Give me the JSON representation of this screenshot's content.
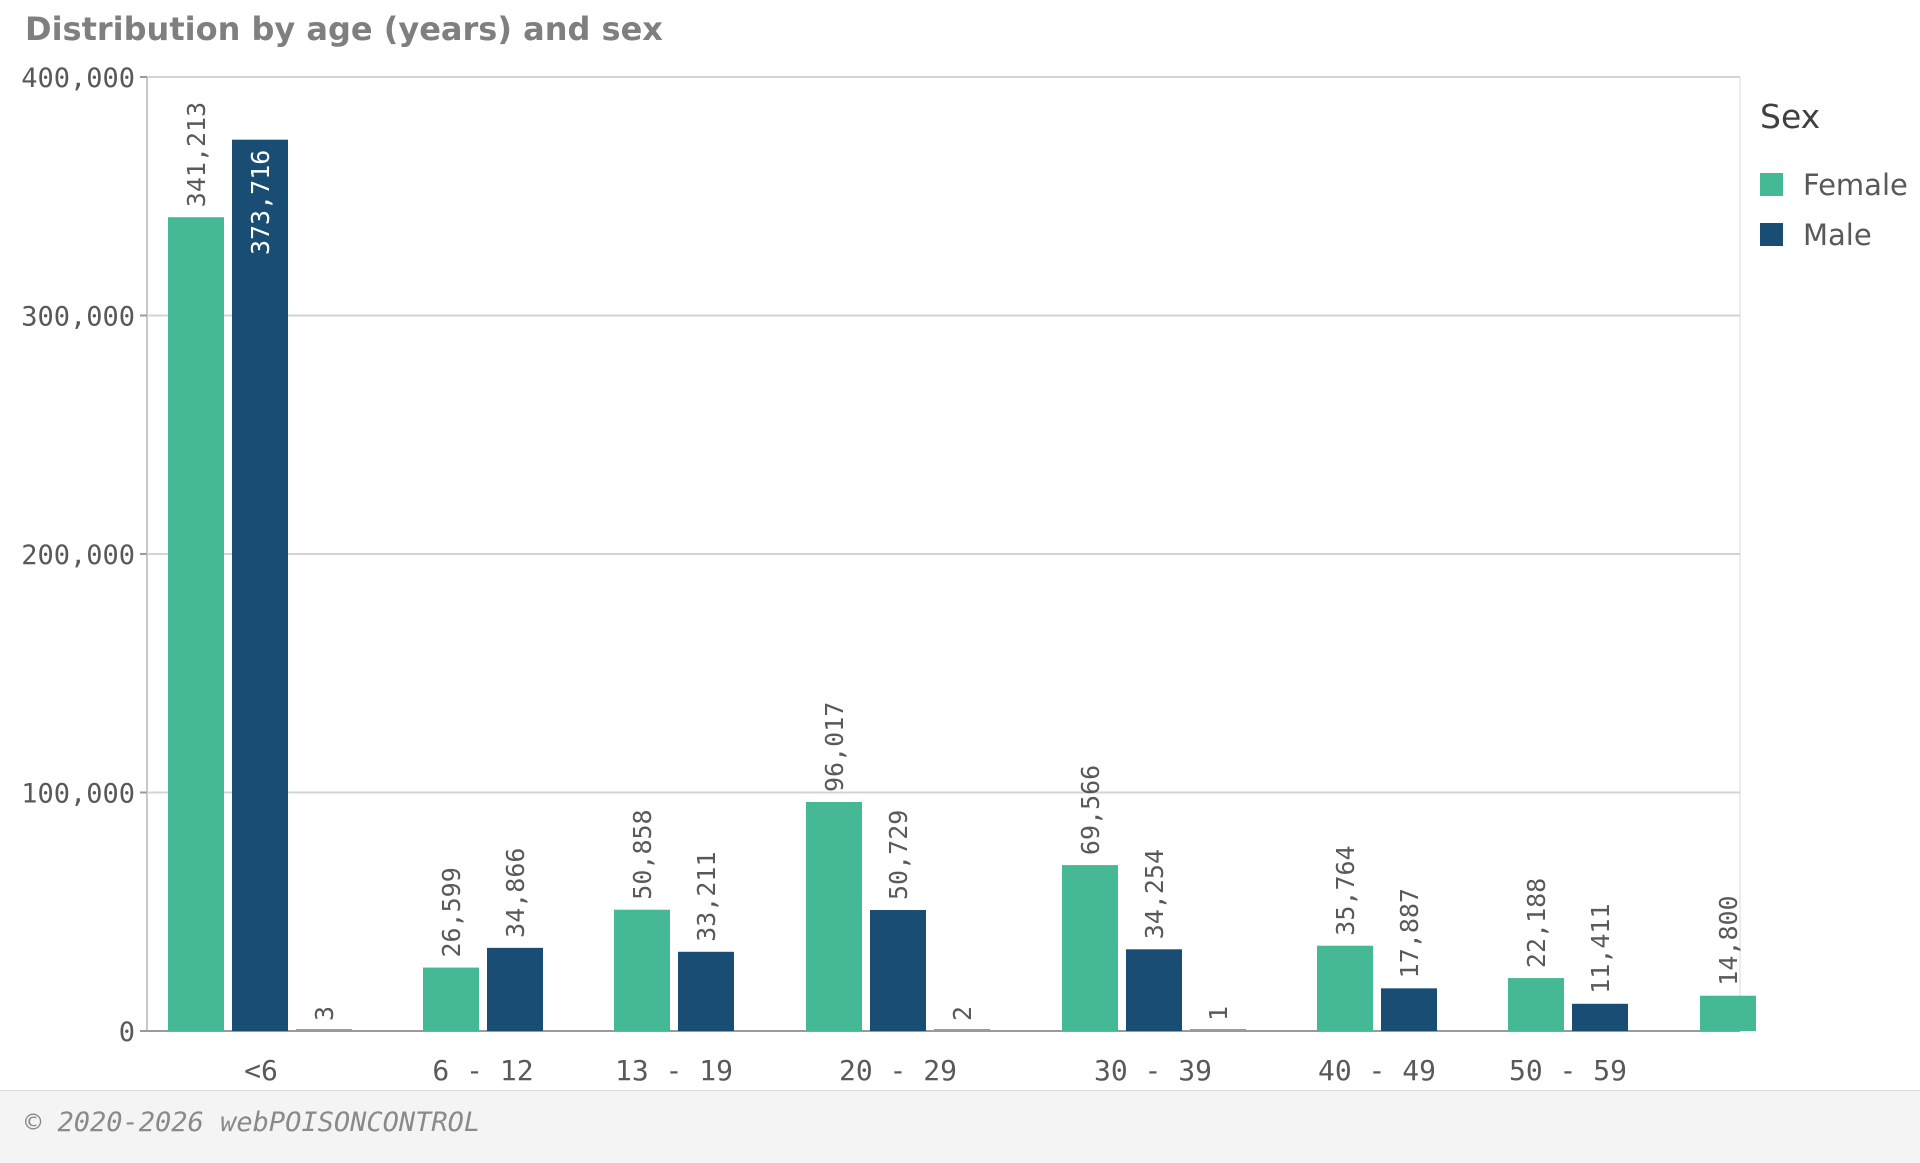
{
  "chart_data": {
    "type": "bar",
    "title": "Distribution by age (years) and sex",
    "xlabel": "",
    "ylabel": "",
    "ylim": [
      0,
      400000
    ],
    "yticks": [
      0,
      100000,
      200000,
      300000,
      400000
    ],
    "ytick_labels": [
      "0",
      "100,000",
      "200,000",
      "300,000",
      "400,000"
    ],
    "grid": true,
    "legend": {
      "title": "Sex",
      "position": "right"
    },
    "categories": [
      "<6",
      "6 - 12",
      "13 - 19",
      "20 - 29",
      "30 - 39",
      "40 - 49",
      "50 - 59",
      ""
    ],
    "series": [
      {
        "name": "Female",
        "color": "#45b896",
        "values": [
          341213,
          26599,
          50858,
          96017,
          69566,
          35764,
          22188,
          14800
        ]
      },
      {
        "name": "Male",
        "color": "#1a4d73",
        "values": [
          373716,
          34866,
          33211,
          50729,
          34254,
          17887,
          11411,
          null
        ]
      },
      {
        "name": "",
        "color": "#9a9a9a",
        "values": [
          3,
          null,
          null,
          2,
          1,
          null,
          null,
          null
        ]
      }
    ]
  },
  "footer": {
    "copyright": "© 2020-2026 webPOISONCONTROL"
  }
}
